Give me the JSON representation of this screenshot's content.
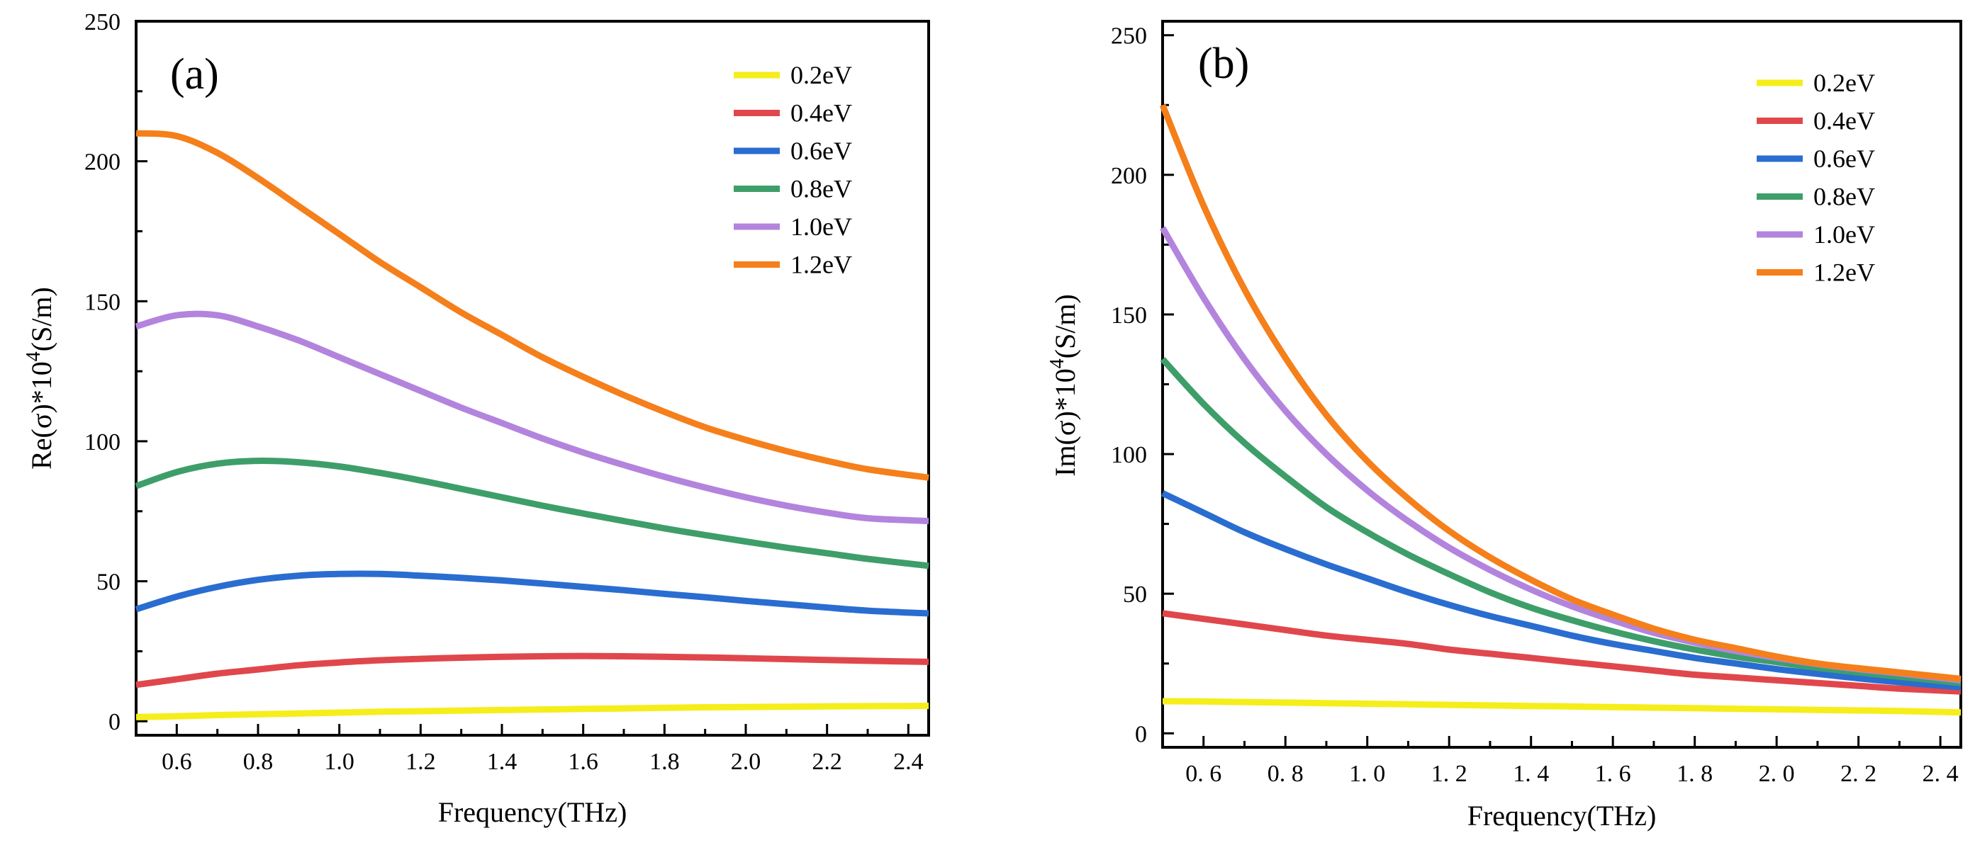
{
  "chart_data": [
    {
      "type": "line",
      "panel_label": "(a)",
      "xlabel": "Frequency(THz)",
      "ylabel_main": "Re(σ)*10",
      "ylabel_exp": "4",
      "ylabel_unit": "(S/m)",
      "xlim": [
        0.5,
        2.45
      ],
      "ylim": [
        -5,
        250
      ],
      "xticks": [
        0.6,
        0.8,
        1.0,
        1.2,
        1.4,
        1.6,
        1.8,
        2.0,
        2.2,
        2.4
      ],
      "xtick_labels": [
        "0.6",
        "0.8",
        "1.0",
        "1.2",
        "1.4",
        "1.6",
        "1.8",
        "2.0",
        "2.2",
        "2.4"
      ],
      "yticks": [
        0,
        50,
        100,
        150,
        200,
        250
      ],
      "ytick_labels": [
        "0",
        "50",
        "100",
        "150",
        "200",
        "250"
      ],
      "legend_position": "top-right",
      "x": [
        0.5,
        0.6,
        0.7,
        0.8,
        0.9,
        1.0,
        1.1,
        1.2,
        1.3,
        1.4,
        1.5,
        1.6,
        1.7,
        1.8,
        1.9,
        2.0,
        2.1,
        2.2,
        2.3,
        2.45
      ],
      "series": [
        {
          "name": "0.2eV",
          "color": "#f5ee1a",
          "values": [
            1.5,
            1.8,
            2.2,
            2.5,
            2.8,
            3.1,
            3.4,
            3.6,
            3.8,
            4.0,
            4.2,
            4.4,
            4.6,
            4.8,
            5.0,
            5.1,
            5.2,
            5.3,
            5.4,
            5.5
          ]
        },
        {
          "name": "0.4eV",
          "color": "#e0474c",
          "values": [
            13,
            15,
            17,
            18.5,
            20,
            21,
            21.8,
            22.3,
            22.7,
            23,
            23.2,
            23.3,
            23.2,
            23,
            22.8,
            22.5,
            22.2,
            21.9,
            21.6,
            21.2
          ]
        },
        {
          "name": "0.6eV",
          "color": "#2a6dd0",
          "values": [
            40,
            44.5,
            48,
            50.5,
            52,
            52.6,
            52.6,
            52,
            51.2,
            50.3,
            49.2,
            48,
            46.8,
            45.5,
            44.3,
            43,
            41.8,
            40.6,
            39.5,
            38.5
          ]
        },
        {
          "name": "0.8eV",
          "color": "#3e9e6a",
          "values": [
            84,
            89,
            92,
            93,
            92.5,
            91,
            88.7,
            86,
            83,
            80,
            77,
            74.2,
            71.5,
            68.9,
            66.5,
            64.2,
            62,
            60,
            58,
            55.5
          ]
        },
        {
          "name": "1.0eV",
          "color": "#b384dd",
          "values": [
            141,
            145,
            145,
            141,
            136,
            130,
            124,
            118,
            112,
            106.5,
            101,
            96,
            91.5,
            87.3,
            83.5,
            80,
            77,
            74.5,
            72.5,
            71.5
          ]
        },
        {
          "name": "1.2eV",
          "color": "#f57f1a",
          "values": [
            210,
            209,
            203,
            194,
            184,
            174,
            164,
            155,
            146,
            138,
            130,
            123,
            116.5,
            110.5,
            105,
            100.5,
            96.5,
            93,
            90,
            87
          ]
        }
      ]
    },
    {
      "type": "line",
      "panel_label": "(b)",
      "xlabel": "Frequency(THz)",
      "ylabel_main": "Im(σ)*10",
      "ylabel_exp": "4",
      "ylabel_unit": "(S/m)",
      "xlim": [
        0.5,
        2.45
      ],
      "ylim": [
        -5,
        255
      ],
      "xticks": [
        0.6,
        0.8,
        1.0,
        1.2,
        1.4,
        1.6,
        1.8,
        2.0,
        2.2,
        2.4
      ],
      "xtick_labels": [
        "0. 6",
        "0. 8",
        "1. 0",
        "1. 2",
        "1. 4",
        "1. 6",
        "1. 8",
        "2. 0",
        "2. 2",
        "2. 4"
      ],
      "yticks": [
        0,
        50,
        100,
        150,
        200,
        250
      ],
      "ytick_labels": [
        "0",
        "50",
        "100",
        "150",
        "200",
        "250"
      ],
      "legend_position": "top-right",
      "x": [
        0.5,
        0.6,
        0.7,
        0.8,
        0.9,
        1.0,
        1.1,
        1.2,
        1.3,
        1.4,
        1.5,
        1.6,
        1.7,
        1.8,
        1.9,
        2.0,
        2.1,
        2.2,
        2.3,
        2.45
      ],
      "series": [
        {
          "name": "0.2eV",
          "color": "#f5ee1a",
          "values": [
            11.5,
            11.4,
            11.2,
            11.0,
            10.8,
            10.6,
            10.4,
            10.2,
            10.0,
            9.8,
            9.6,
            9.4,
            9.2,
            9.0,
            8.8,
            8.6,
            8.4,
            8.2,
            8.0,
            7.5
          ]
        },
        {
          "name": "0.4eV",
          "color": "#e0474c",
          "values": [
            43,
            41,
            39,
            37,
            35,
            33.5,
            32,
            30,
            28.5,
            27,
            25.5,
            24,
            22.5,
            21,
            20,
            19,
            18,
            17,
            16,
            15
          ]
        },
        {
          "name": "0.6eV",
          "color": "#2a6dd0",
          "values": [
            86,
            79,
            72,
            66,
            60.5,
            55.5,
            50.5,
            46,
            42,
            38.5,
            35,
            32,
            29.5,
            27,
            25,
            23,
            21.3,
            19.7,
            18.3,
            16.5
          ]
        },
        {
          "name": "0.8eV",
          "color": "#3e9e6a",
          "values": [
            134,
            118,
            104,
            92,
            81,
            72,
            64,
            57,
            50.5,
            45,
            40.5,
            36.5,
            33,
            30,
            27.5,
            25.5,
            23.5,
            21.8,
            20.3,
            18
          ]
        },
        {
          "name": "1.0eV",
          "color": "#b384dd",
          "values": [
            181,
            156,
            134,
            115.5,
            100,
            87,
            76,
            66.5,
            58.5,
            51.5,
            45.5,
            40.5,
            36,
            32.5,
            29.5,
            27,
            24.8,
            23,
            21.5,
            19
          ]
        },
        {
          "name": "1.2eV",
          "color": "#f57f1a",
          "values": [
            225,
            189,
            159,
            134.5,
            114,
            97.5,
            84,
            72.5,
            63,
            55,
            48,
            42.5,
            37.5,
            33.5,
            30.5,
            27.5,
            25,
            23.3,
            21.8,
            19.5
          ]
        }
      ]
    }
  ]
}
